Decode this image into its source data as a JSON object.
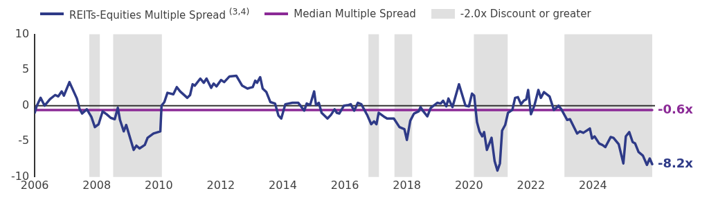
{
  "chart_data": {
    "type": "line",
    "legend": "top",
    "grid": false,
    "marker": "none",
    "line_style": "solid",
    "xlim": [
      2006,
      2026
    ],
    "xticks": [
      2006,
      2008,
      2010,
      2012,
      2014,
      2016,
      2018,
      2020,
      2022,
      2024
    ],
    "ylim": [
      -10,
      10
    ],
    "yticks": [
      -10,
      -5,
      0,
      5,
      10
    ],
    "series": [
      {
        "name": "REITs-Equities Multiple Spread $^{(3,4)}$",
        "color": "#2e3a87",
        "x": [
          2006.0,
          2006.06,
          2006.19,
          2006.32,
          2006.49,
          2006.66,
          2006.76,
          2006.87,
          2006.94,
          2007.12,
          2007.36,
          2007.45,
          2007.53,
          2007.68,
          2007.83,
          2007.94,
          2008.06,
          2008.19,
          2008.32,
          2008.45,
          2008.58,
          2008.68,
          2008.75,
          2008.87,
          2008.95,
          2009.19,
          2009.28,
          2009.38,
          2009.55,
          2009.64,
          2009.83,
          2010.05,
          2010.09,
          2010.18,
          2010.28,
          2010.47,
          2010.58,
          2010.69,
          2010.92,
          2011.01,
          2011.09,
          2011.16,
          2011.34,
          2011.45,
          2011.54,
          2011.69,
          2011.77,
          2011.86,
          2012.01,
          2012.11,
          2012.28,
          2012.5,
          2012.69,
          2012.86,
          2012.94,
          2013.03,
          2013.11,
          2013.17,
          2013.27,
          2013.35,
          2013.47,
          2013.6,
          2013.75,
          2013.86,
          2013.95,
          2014.08,
          2014.31,
          2014.5,
          2014.69,
          2014.77,
          2014.88,
          2015.01,
          2015.07,
          2015.16,
          2015.25,
          2015.44,
          2015.55,
          2015.67,
          2015.74,
          2015.82,
          2015.97,
          2016.12,
          2016.19,
          2016.3,
          2016.42,
          2016.53,
          2016.72,
          2016.85,
          2016.94,
          2017.02,
          2017.09,
          2017.25,
          2017.36,
          2017.58,
          2017.76,
          2017.92,
          2018.0,
          2018.11,
          2018.23,
          2018.38,
          2018.44,
          2018.53,
          2018.66,
          2018.77,
          2018.98,
          2019.09,
          2019.17,
          2019.27,
          2019.34,
          2019.47,
          2019.68,
          2019.89,
          2020.0,
          2020.1,
          2020.17,
          2020.26,
          2020.34,
          2020.43,
          2020.49,
          2020.58,
          2020.73,
          2020.83,
          2020.92,
          2021.0,
          2021.07,
          2021.17,
          2021.26,
          2021.4,
          2021.49,
          2021.58,
          2021.68,
          2021.77,
          2021.85,
          2021.91,
          2022.0,
          2022.11,
          2022.24,
          2022.32,
          2022.42,
          2022.6,
          2022.74,
          2022.89,
          2022.98,
          2023.17,
          2023.26,
          2023.49,
          2023.58,
          2023.69,
          2023.9,
          2023.97,
          2024.05,
          2024.2,
          2024.3,
          2024.4,
          2024.57,
          2024.66,
          2024.83,
          2024.98,
          2025.06,
          2025.17,
          2025.28,
          2025.36,
          2025.47,
          2025.61,
          2025.74,
          2025.83,
          2025.91
        ],
        "values": [
          -1.0,
          -0.1,
          1.1,
          0.0,
          0.9,
          1.5,
          1.3,
          2.0,
          1.4,
          3.3,
          1.0,
          -0.5,
          -1.1,
          -0.5,
          -1.6,
          -3.0,
          -2.6,
          -0.8,
          -1.2,
          -1.7,
          -1.9,
          -0.3,
          -2.0,
          -3.6,
          -2.7,
          -6.2,
          -5.6,
          -6.0,
          -5.5,
          -4.5,
          -3.9,
          -3.6,
          0.0,
          0.5,
          1.8,
          1.6,
          2.6,
          2.0,
          1.1,
          1.5,
          3.0,
          2.8,
          3.8,
          3.2,
          3.8,
          2.5,
          3.1,
          2.7,
          3.6,
          3.3,
          4.1,
          4.2,
          2.8,
          2.4,
          2.5,
          2.6,
          3.5,
          3.2,
          4.0,
          2.4,
          1.9,
          0.5,
          0.3,
          -1.4,
          -1.8,
          0.2,
          0.4,
          0.4,
          -0.7,
          0.3,
          0.1,
          2.0,
          0.1,
          0.4,
          -1.0,
          -1.8,
          -1.3,
          -0.5,
          -1.0,
          -1.1,
          0.0,
          0.1,
          0.2,
          -0.7,
          0.4,
          0.2,
          -1.3,
          -2.6,
          -2.2,
          -2.6,
          -1.0,
          -1.5,
          -1.8,
          -1.8,
          -3.0,
          -3.3,
          -4.8,
          -2.1,
          -1.1,
          -0.8,
          -0.2,
          -0.8,
          -1.5,
          -0.3,
          0.4,
          0.3,
          0.7,
          -0.1,
          1.0,
          -0.2,
          3.0,
          0.0,
          -0.1,
          1.7,
          1.4,
          -2.3,
          -3.6,
          -4.3,
          -3.7,
          -6.2,
          -4.5,
          -7.8,
          -9.1,
          -8.1,
          -3.5,
          -2.7,
          -1.0,
          -0.6,
          1.1,
          1.2,
          0.2,
          0.7,
          0.9,
          2.2,
          -1.2,
          0.0,
          2.2,
          1.1,
          1.9,
          1.3,
          -0.6,
          0.0,
          -0.5,
          -2.0,
          -1.9,
          -3.9,
          -3.6,
          -3.8,
          -3.2,
          -4.6,
          -4.3,
          -5.3,
          -5.5,
          -5.8,
          -4.4,
          -4.5,
          -5.4,
          -8.1,
          -4.3,
          -3.7,
          -5.1,
          -5.3,
          -6.5,
          -7.0,
          -8.3,
          -7.4,
          -8.2
        ]
      },
      {
        "name": "Median Multiple Spread",
        "color": "#8b2a96",
        "x": [
          2006.0,
          2025.91
        ],
        "values": [
          -0.6,
          -0.6
        ]
      }
    ],
    "ref_lines": [
      {
        "axis": "y",
        "value": 0,
        "color": "#333333"
      }
    ],
    "bands": [
      {
        "axis": "x",
        "from": 2007.76,
        "to": 2008.1,
        "color": "#e0e0e0",
        "label": "-2.0x Discount or greater"
      },
      {
        "axis": "x",
        "from": 2008.53,
        "to": 2010.1,
        "color": "#e0e0e0"
      },
      {
        "axis": "x",
        "from": 2016.76,
        "to": 2017.1,
        "color": "#e0e0e0"
      },
      {
        "axis": "x",
        "from": 2017.6,
        "to": 2018.17,
        "color": "#e0e0e0"
      },
      {
        "axis": "x",
        "from": 2020.16,
        "to": 2021.25,
        "color": "#e0e0e0"
      },
      {
        "axis": "x",
        "from": 2023.08,
        "to": 2025.91,
        "color": "#e0e0e0"
      }
    ],
    "annotations": [
      {
        "text": "-0.6x",
        "x": 2025.91,
        "y": -0.6
      },
      {
        "text": "-8.2x",
        "x": 2025.91,
        "y": -8.2
      }
    ]
  }
}
